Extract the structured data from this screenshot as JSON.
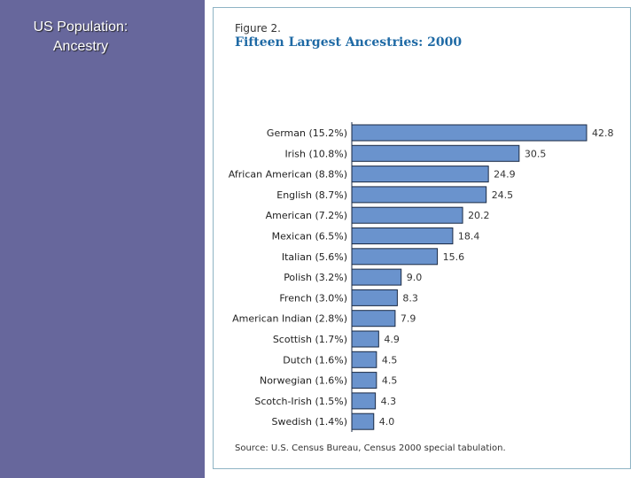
{
  "slide": {
    "title_line1": "US Population:",
    "title_line2": "Ancestry"
  },
  "figure": {
    "label": "Figure 2.",
    "title": "Fifteen Largest Ancestries: 2000",
    "source": "Source:  U.S. Census Bureau, Census 2000 special tabulation."
  },
  "colors": {
    "sidebar": "#67679c",
    "bar": "#6a93cd",
    "title": "#1f6aa5"
  },
  "chart_data": {
    "type": "bar",
    "orientation": "horizontal",
    "title": "Fifteen Largest Ancestries: 2000",
    "categories": [
      "German (15.2%)",
      "Irish (10.8%)",
      "African American (8.8%)",
      "English (8.7%)",
      "American (7.2%)",
      "Mexican (6.5%)",
      "Italian (5.6%)",
      "Polish (3.2%)",
      "French (3.0%)",
      "American Indian (2.8%)",
      "Scottish (1.7%)",
      "Dutch (1.6%)",
      "Norwegian (1.6%)",
      "Scotch-Irish (1.5%)",
      "Swedish  (1.4%)"
    ],
    "values": [
      42.8,
      30.5,
      24.9,
      24.5,
      20.2,
      18.4,
      15.6,
      9.0,
      8.3,
      7.9,
      4.9,
      4.5,
      4.5,
      4.3,
      4.0
    ],
    "value_labels": [
      "42.8",
      "30.5",
      "24.9",
      "24.5",
      "20.2",
      "18.4",
      "15.6",
      "9.0",
      "8.3",
      "7.9",
      "4.9",
      "4.5",
      "4.5",
      "4.3",
      "4.0"
    ],
    "xlim": [
      0,
      45
    ],
    "grid": false,
    "data_labels": true
  }
}
